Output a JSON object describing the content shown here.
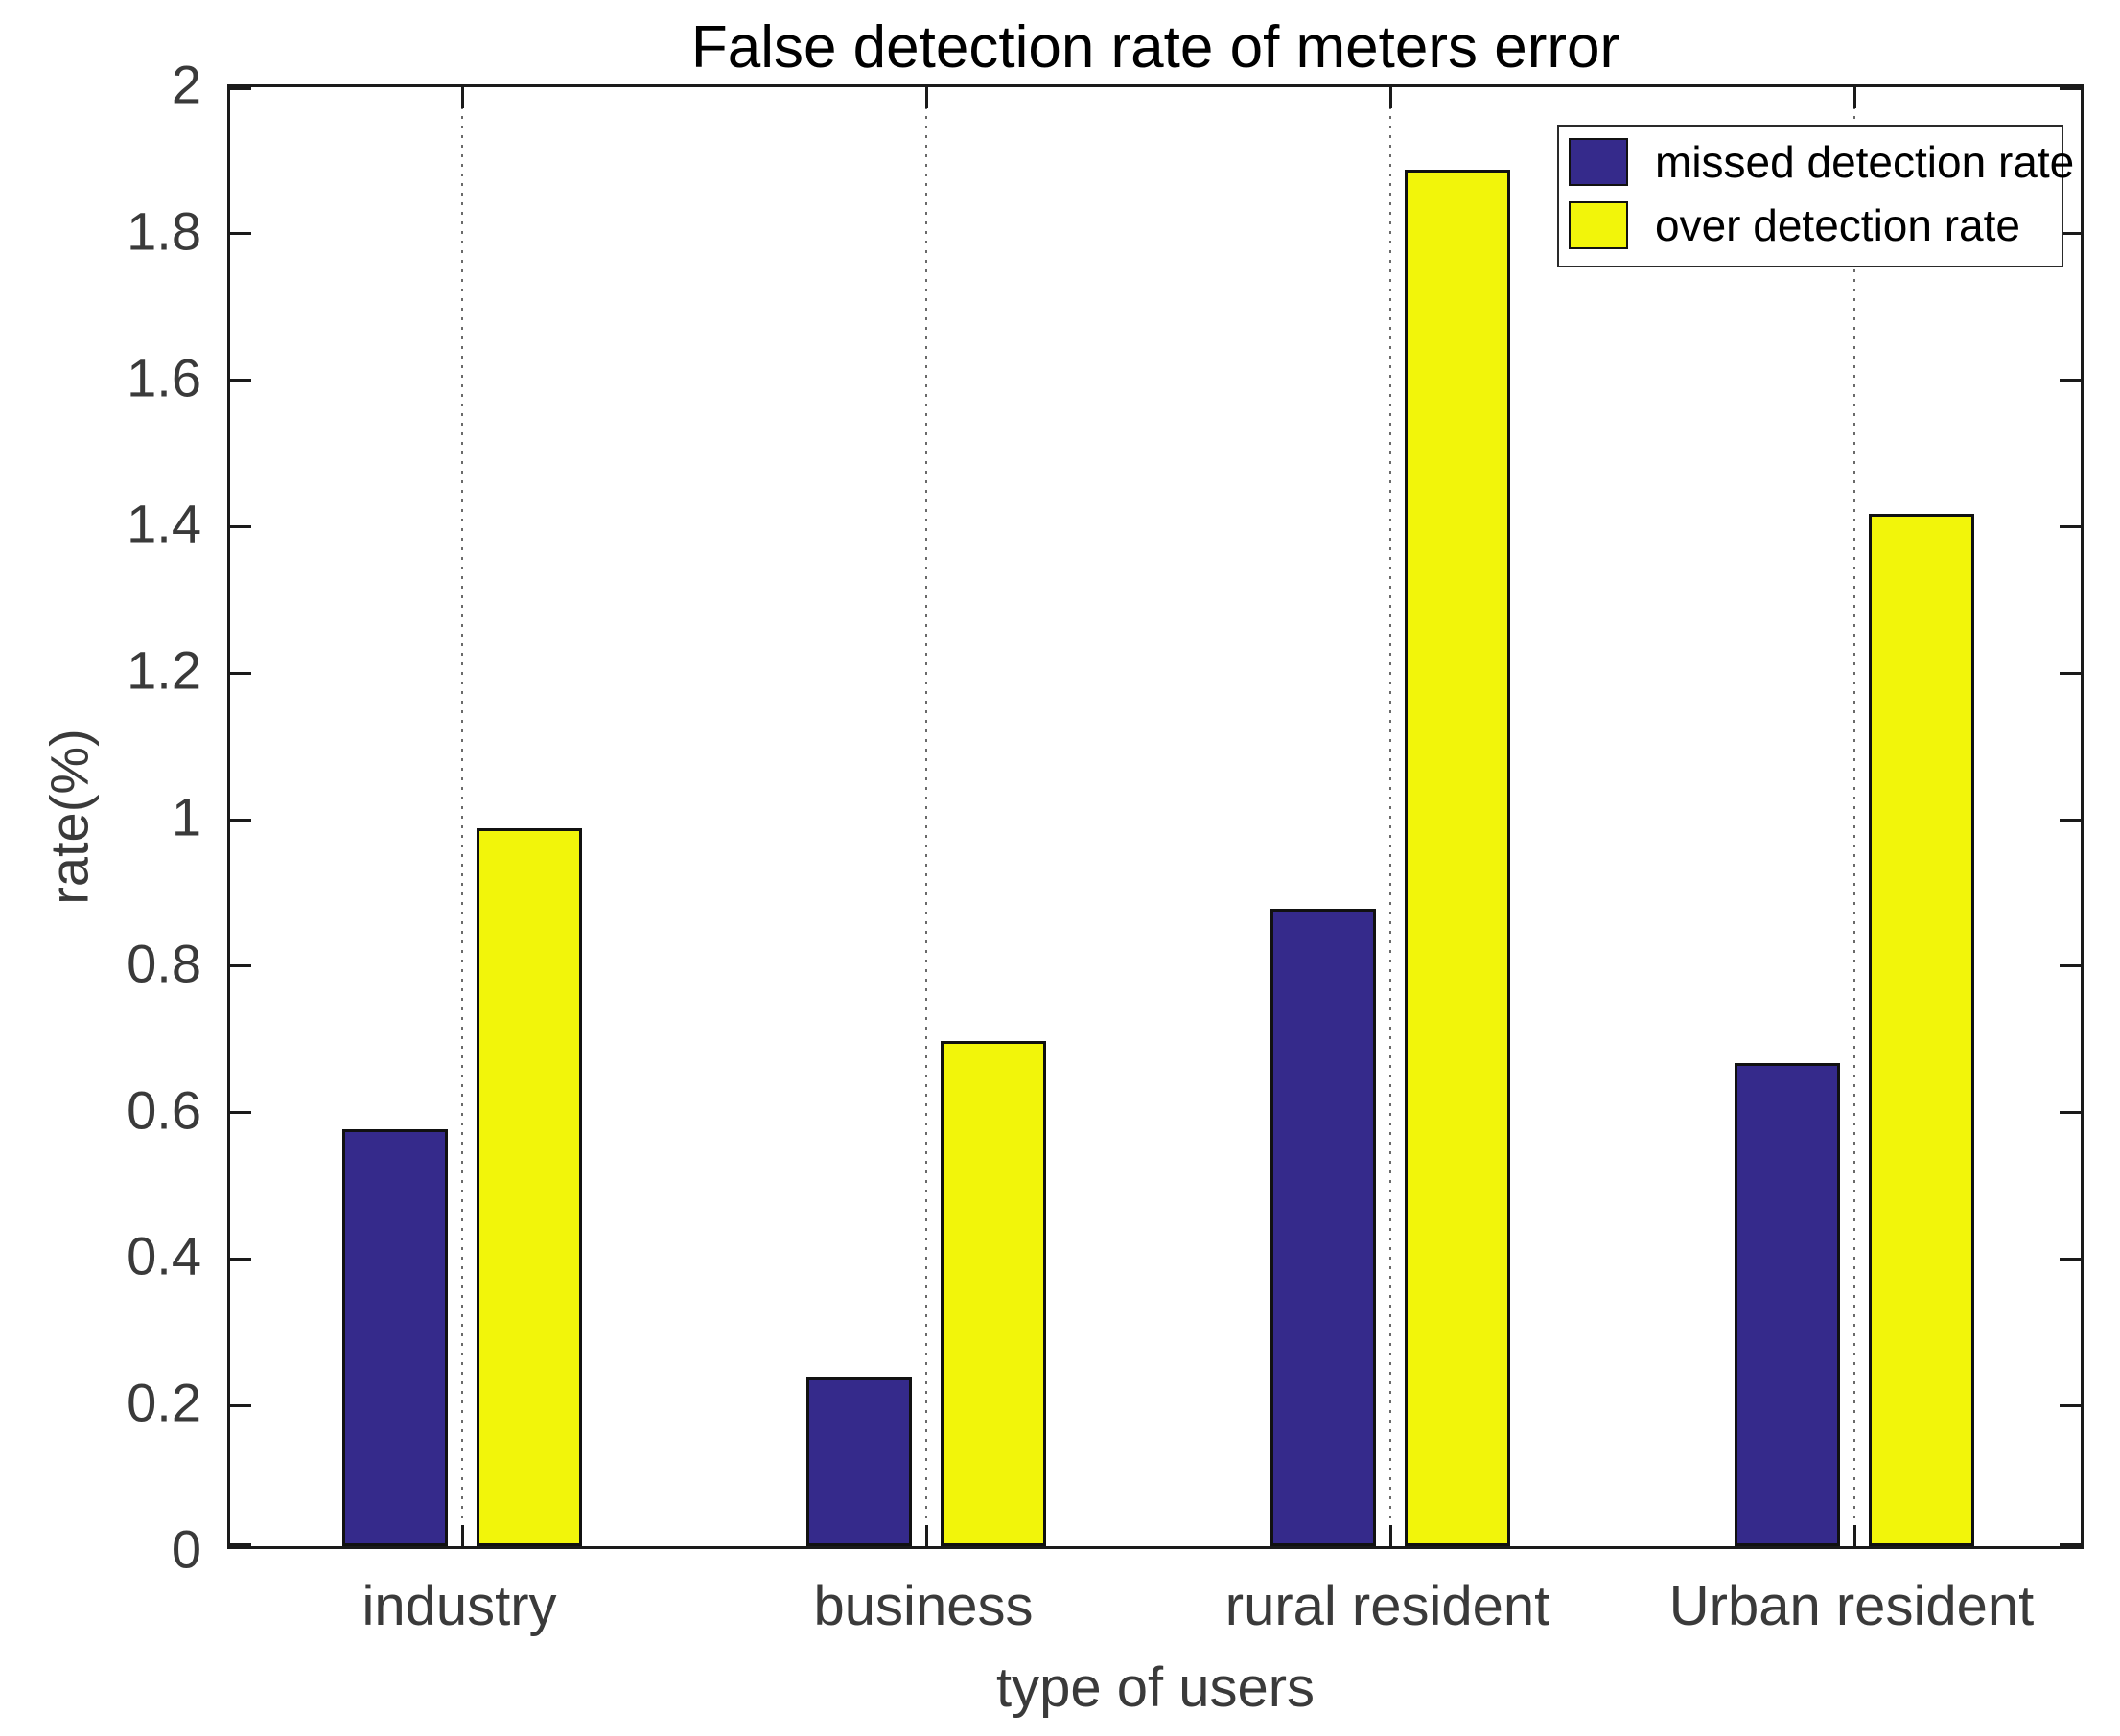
{
  "title": "False detection rate of meters error",
  "x_axis_label": "type of users",
  "y_axis_label": "rate(%)",
  "legend": {
    "position": "northeast",
    "entries": [
      {
        "label": "missed detection rate",
        "color": "#352A8B"
      },
      {
        "label": "over detection rate",
        "color": "#F2F50A"
      }
    ]
  },
  "chart_data": {
    "type": "bar",
    "title": "False detection rate of meters error",
    "xlabel": "type of users",
    "ylabel": "rate(%)",
    "categories": [
      "industry",
      "business",
      "rural resident",
      "Urban resident"
    ],
    "series": [
      {
        "name": "missed detection rate",
        "color": "#352A8B",
        "values": [
          0.57,
          0.23,
          0.87,
          0.66
        ]
      },
      {
        "name": "over detection rate",
        "color": "#F2F50A",
        "values": [
          0.98,
          0.69,
          1.88,
          1.41
        ]
      }
    ],
    "ylim": [
      0,
      2
    ],
    "ytick_step": 0.2,
    "ytick_labels": [
      "0",
      "0.2",
      "0.4",
      "0.6",
      "0.8",
      "1",
      "1.2",
      "1.4",
      "1.6",
      "1.8",
      "2"
    ],
    "grid": "vertical-dotted-at-category-centers",
    "legend_position": "northeast",
    "bar_edge_color": "#111111"
  }
}
